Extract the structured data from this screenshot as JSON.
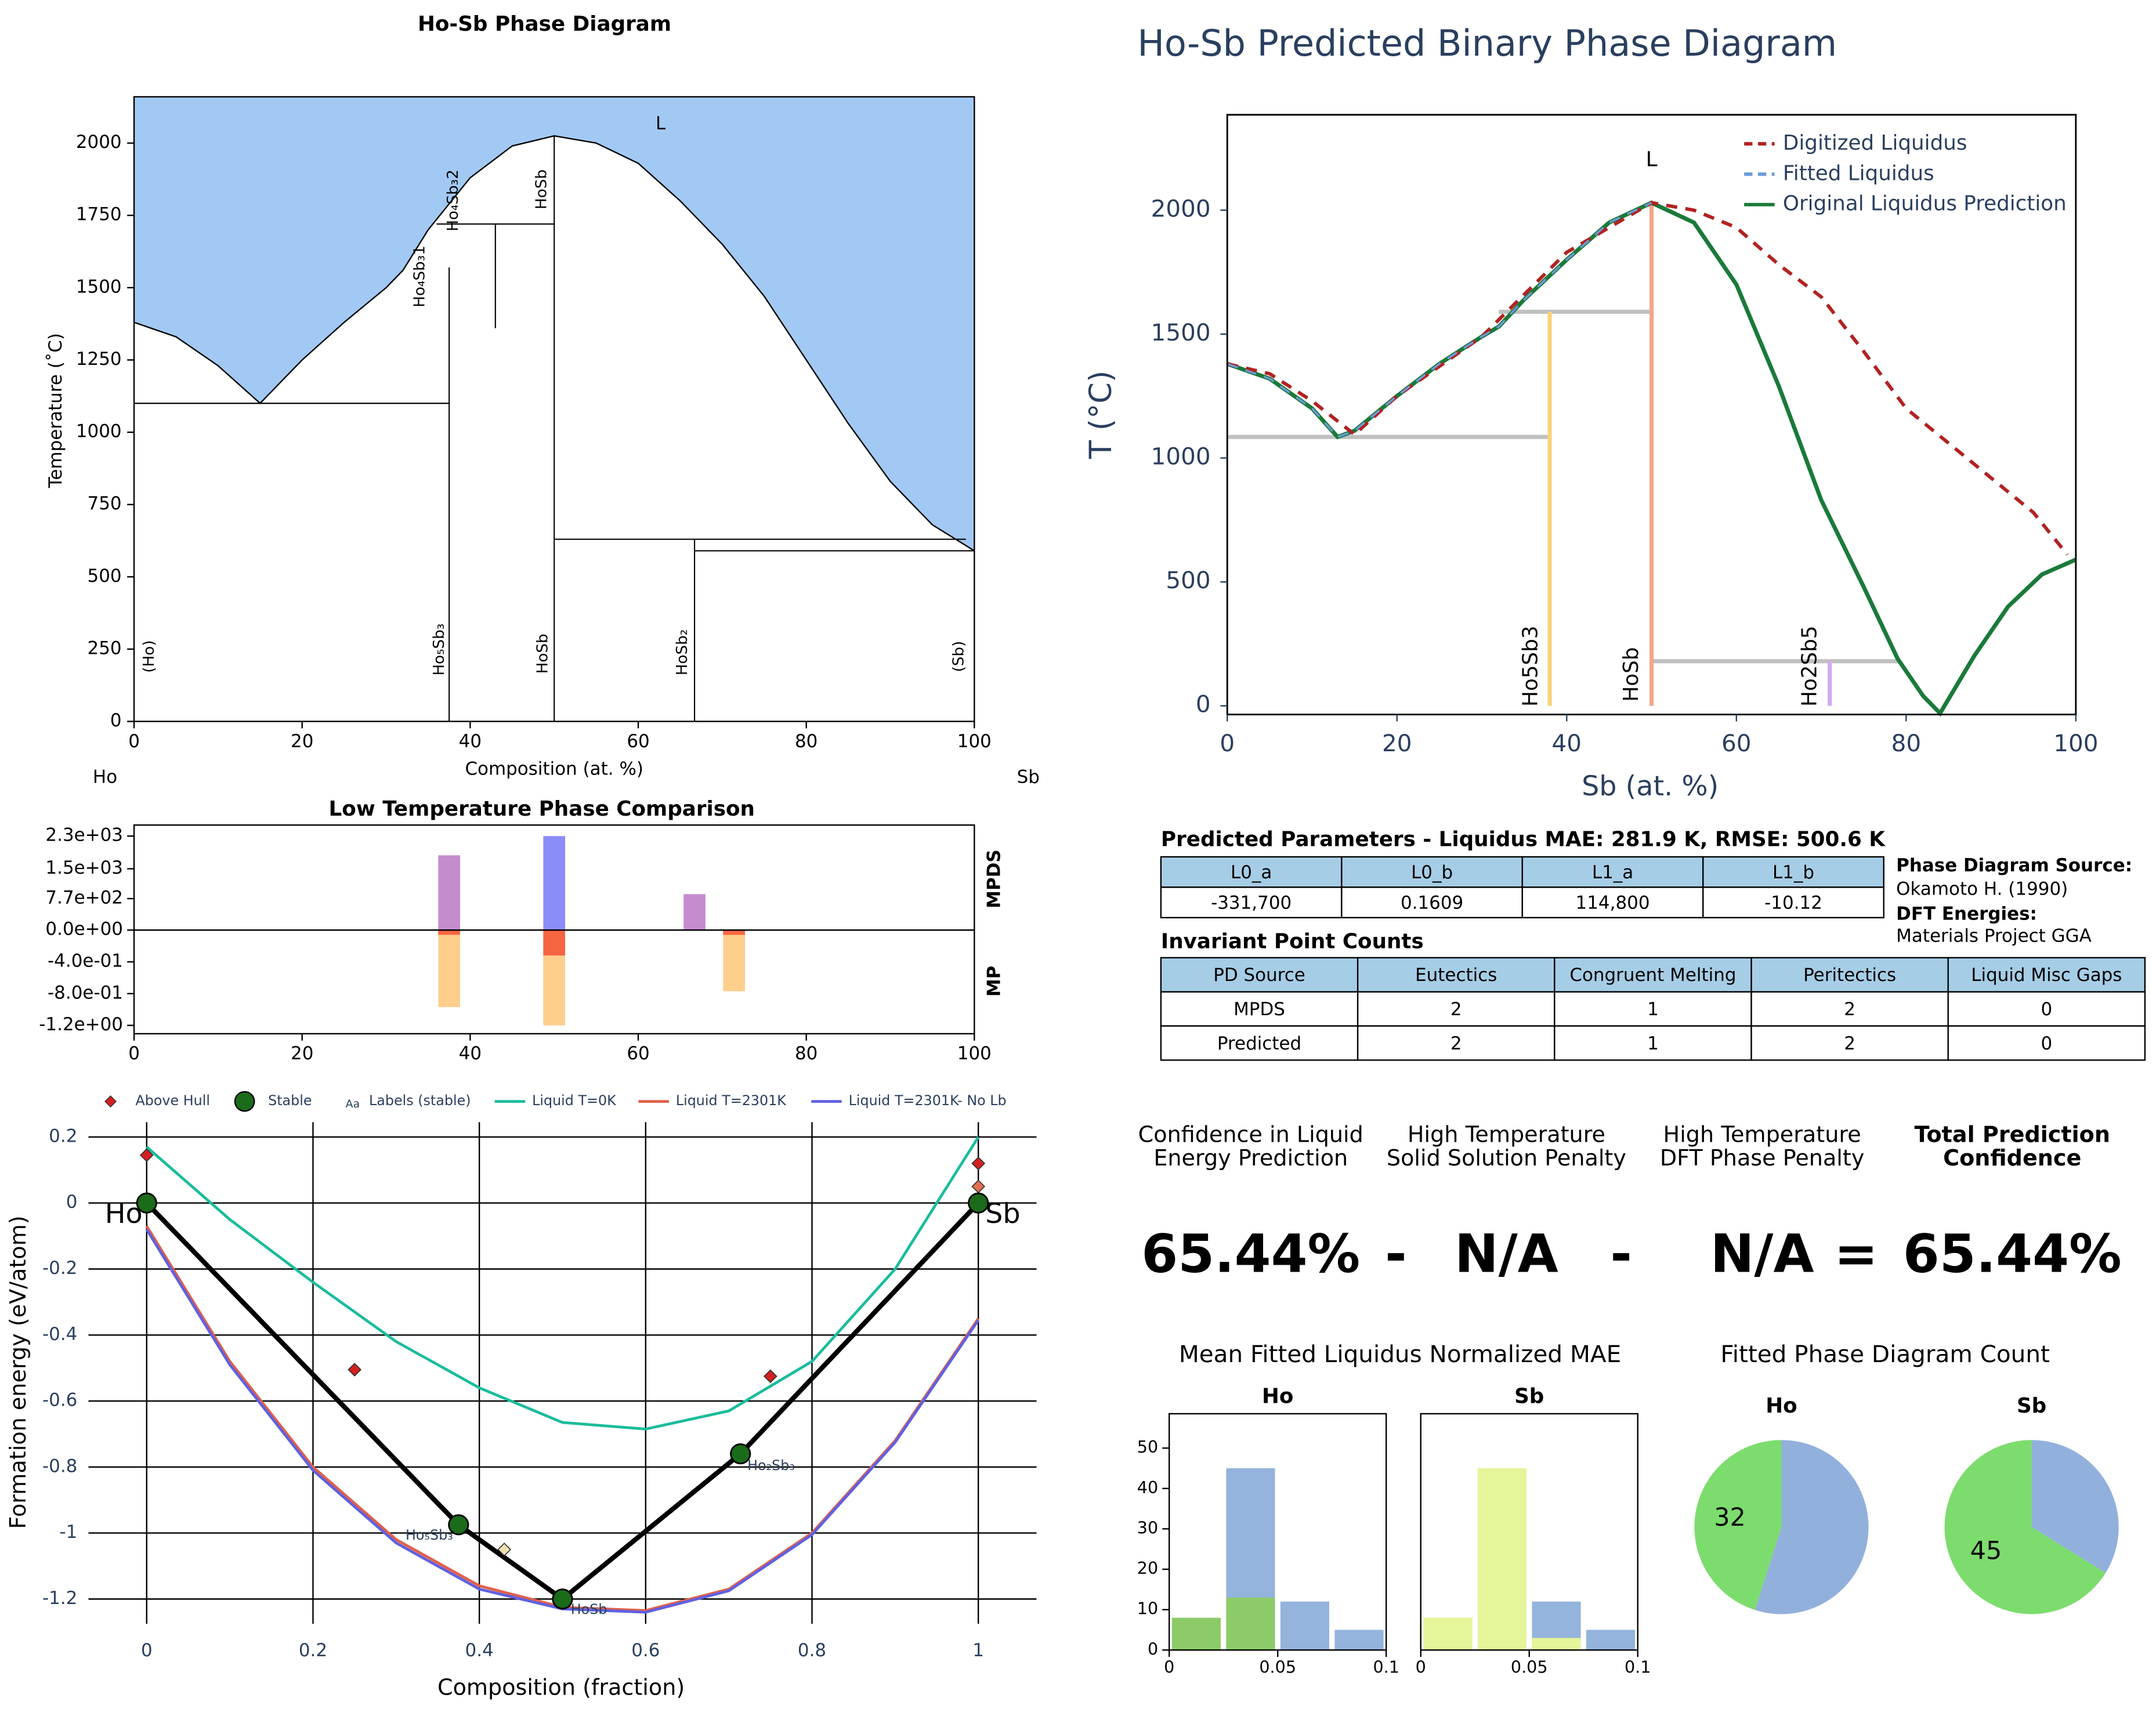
{
  "chart_data": [
    {
      "type": "line",
      "title": "Ho-Sb Phase Diagram",
      "xlabel": "Composition (at. %)",
      "ylabel": "Temperature (˚C)",
      "left_element": "Ho",
      "right_element": "Sb",
      "xlim": [
        0,
        100
      ],
      "ylim": [
        0,
        2160
      ],
      "xticks": [
        0,
        20,
        40,
        60,
        80,
        100
      ],
      "yticks": [
        0,
        250,
        500,
        750,
        1000,
        1250,
        1500,
        1750,
        2000
      ],
      "fill": "#a2c9f3",
      "series": [
        {
          "color": "#000000",
          "x": [
            0,
            5,
            10,
            15,
            20,
            25,
            30,
            32,
            35,
            40,
            45,
            50,
            55,
            60,
            65,
            66,
            70,
            75,
            80,
            85,
            90,
            95,
            100
          ],
          "values": [
            1380,
            1330,
            1230,
            1100,
            1250,
            1380,
            1500,
            1560,
            1700,
            1880,
            1990,
            2025,
            2000,
            1930,
            1800,
            1770,
            1650,
            1470,
            1250,
            1030,
            830,
            680,
            590
          ]
        }
      ],
      "boundaries": [
        {
          "x": [
            0,
            37.5
          ],
          "y": [
            1100,
            1100
          ]
        },
        {
          "x": [
            37.5,
            37.5
          ],
          "y": [
            0,
            1570
          ]
        },
        {
          "x": [
            36,
            50
          ],
          "y": [
            1720,
            1720
          ]
        },
        {
          "x": [
            43,
            43
          ],
          "y": [
            1360,
            1720
          ]
        },
        {
          "x": [
            50,
            50
          ],
          "y": [
            0,
            2025
          ]
        },
        {
          "x": [
            50,
            99
          ],
          "y": [
            630,
            630
          ]
        },
        {
          "x": [
            66.7,
            66.7
          ],
          "y": [
            0,
            630
          ]
        },
        {
          "x": [
            66.7,
            100
          ],
          "y": [
            590,
            590
          ]
        }
      ],
      "phase_labels": [
        "L",
        "(Ho)",
        "Ho₅Sb₃",
        "HoSb",
        "HoSb₂",
        "(Sb)",
        "Ho₄Sb₃1",
        "Ho₄Sb₃2",
        "HoSb"
      ]
    },
    {
      "type": "bar",
      "title": "Low Temperature Phase Comparison",
      "xlim": [
        0,
        100
      ],
      "xticks": [
        0,
        20,
        40,
        60,
        80,
        100
      ],
      "ylim": [
        0,
        2570
      ],
      "yticks": [
        {
          "value": 2300,
          "label": "2.3e+03"
        },
        {
          "value": 1500,
          "label": "1.5e+03"
        },
        {
          "value": 770,
          "label": "7.7e+02"
        },
        {
          "value": 0,
          "label": "0.0e+00"
        }
      ],
      "y2lim": [
        -1.305,
        0
      ],
      "y2ticks": [
        {
          "value": -0.4,
          "label": "-4.0e-01"
        },
        {
          "value": -0.8,
          "label": "-8.0e-01"
        },
        {
          "value": -1.2,
          "label": "-1.2e+00"
        }
      ],
      "series": [
        {
          "name": "MPDS",
          "x": [
            37.5,
            50,
            66.7
          ],
          "values": [
            1830,
            2300,
            880
          ],
          "colors": [
            "#bf80c8",
            "#7f7ff8",
            "#bf80c8"
          ]
        },
        {
          "name": "MP",
          "axis": "y2",
          "x": [
            37.5,
            50,
            71.4
          ],
          "values": [
            -0.97,
            -1.2,
            -0.77
          ],
          "color": "#fdc97f"
        },
        {
          "axis": "y2",
          "x": [
            37.5,
            50,
            71.4
          ],
          "values": [
            -0.06,
            -0.32,
            -0.06
          ],
          "color": "#f55a3a"
        }
      ]
    },
    {
      "type": "scatter",
      "xlabel": "Composition (fraction)",
      "ylabel": "Formation energy (eV/atom)",
      "xlim": [
        -0.07,
        1.07
      ],
      "ylim": [
        -1.275,
        0.245
      ],
      "xticks": [
        0,
        0.2,
        0.4,
        0.6,
        0.8,
        1
      ],
      "yticks": [
        0.2,
        0,
        -0.2,
        -0.4,
        -0.6,
        -0.8,
        -1,
        -1.2
      ],
      "grid": true,
      "labels_legend": "Labels (stable)",
      "labels_icon": "Aa",
      "series": [
        {
          "name": "Above Hull",
          "marker": "diamond",
          "x": [
            0,
            0,
            0.25,
            0.43,
            0.75,
            1,
            1
          ],
          "values": [
            0.145,
            0.01,
            -0.505,
            -1.05,
            -0.525,
            0.12,
            0.05
          ],
          "colors": [
            "#d42020",
            "#f0e0b0",
            "#d42020",
            "#f0e0b0",
            "#d42020",
            "#d42020",
            "#e07050"
          ]
        },
        {
          "name": "Stable",
          "marker": "circle",
          "color": "#1a6b1a",
          "x": [
            0,
            0.375,
            0.5,
            0.714,
            1
          ],
          "values": [
            0,
            -0.975,
            -1.2,
            -0.76,
            0
          ],
          "labels": [
            "Ho",
            "Ho₅Sb₃",
            "HoSb",
            "Ho₂Sb₃",
            "Sb"
          ]
        },
        {
          "name": "Liquid T=0K",
          "color": "#1abc9c",
          "x": [
            0,
            0.1,
            0.2,
            0.3,
            0.4,
            0.5,
            0.6,
            0.7,
            0.8,
            0.9,
            1
          ],
          "values": [
            0.17,
            -0.05,
            -0.24,
            -0.42,
            -0.56,
            -0.665,
            -0.685,
            -0.63,
            -0.48,
            -0.2,
            0.2
          ]
        },
        {
          "name": "Liquid T=2301K",
          "color": "#e0604a",
          "x": [
            0,
            0.1,
            0.2,
            0.3,
            0.4,
            0.5,
            0.6,
            0.7,
            0.8,
            0.9,
            1
          ],
          "values": [
            -0.07,
            -0.48,
            -0.8,
            -1.02,
            -1.16,
            -1.225,
            -1.235,
            -1.17,
            -1.0,
            -0.72,
            -0.35
          ]
        },
        {
          "name": "Liquid T=2301K- No Lb",
          "color": "#6060e0",
          "x": [
            0,
            0.1,
            0.2,
            0.3,
            0.4,
            0.5,
            0.6,
            0.7,
            0.8,
            0.9,
            1
          ],
          "values": [
            -0.08,
            -0.49,
            -0.81,
            -1.03,
            -1.17,
            -1.23,
            -1.24,
            -1.175,
            -1.005,
            -0.725,
            -0.355
          ]
        }
      ]
    },
    {
      "type": "line",
      "title": "Ho-Sb Predicted Binary Phase Diagram",
      "xlabel": "Sb (at. %)",
      "ylabel": "T (°C)",
      "xlim": [
        0,
        100
      ],
      "ylim": [
        -35,
        2385
      ],
      "xticks": [
        0,
        20,
        40,
        60,
        80,
        100
      ],
      "yticks": [
        0,
        500,
        1000,
        1500,
        2000
      ],
      "legend": "upper right",
      "series": [
        {
          "name": "Digitized Liquidus",
          "color": "#b22222",
          "dash": true,
          "x": [
            0,
            5,
            10,
            15,
            20,
            30,
            40,
            50,
            55,
            60,
            65,
            70,
            75,
            80,
            85,
            90,
            95,
            99
          ],
          "values": [
            1380,
            1340,
            1230,
            1095,
            1250,
            1490,
            1830,
            2030,
            2000,
            1930,
            1780,
            1650,
            1430,
            1200,
            1060,
            920,
            780,
            610
          ]
        },
        {
          "name": "Fitted Liquidus",
          "color": "#6c9ad8",
          "dash": true,
          "x": [
            0,
            5,
            10,
            13,
            15,
            20,
            25,
            30,
            32,
            35,
            40,
            45,
            50
          ],
          "values": [
            1380,
            1320,
            1200,
            1085,
            1110,
            1250,
            1380,
            1490,
            1530,
            1640,
            1800,
            1950,
            2030
          ]
        },
        {
          "name": "Original Liquidus Prediction",
          "color": "#1a7a3a",
          "x": [
            0,
            5,
            10,
            13,
            15,
            20,
            25,
            30,
            32,
            35,
            40,
            45,
            50,
            55,
            60,
            65,
            70,
            75,
            79,
            82,
            84,
            88,
            92,
            96,
            100
          ],
          "values": [
            1380,
            1320,
            1200,
            1085,
            1110,
            1250,
            1380,
            1490,
            1530,
            1640,
            1800,
            1950,
            2030,
            1950,
            1700,
            1290,
            830,
            480,
            190,
            40,
            -30,
            200,
            400,
            530,
            590
          ]
        }
      ],
      "boundaries": [
        {
          "x": [
            0,
            38
          ],
          "y": [
            1085,
            1085
          ],
          "color": "#c0c0c0"
        },
        {
          "x": [
            32,
            50
          ],
          "y": [
            1590,
            1590
          ],
          "color": "#c0c0c0"
        },
        {
          "x": [
            50,
            79
          ],
          "y": [
            180,
            180
          ],
          "color": "#c0c0c0"
        },
        {
          "x": [
            38,
            38
          ],
          "y": [
            0,
            1590
          ],
          "color": "#f5d47a"
        },
        {
          "x": [
            50,
            50
          ],
          "y": [
            0,
            2030
          ],
          "color": "#f5a58a"
        },
        {
          "x": [
            71,
            71
          ],
          "y": [
            0,
            180
          ],
          "color": "#d5a8f0"
        }
      ],
      "phase_labels": [
        "L",
        "Ho5Sb3",
        "HoSb",
        "Ho2Sb5"
      ]
    },
    {
      "type": "histogram",
      "title": "Ho",
      "xlim": [
        0,
        0.1
      ],
      "ylim": [
        0,
        58.5
      ],
      "xticks": [
        0,
        0.05,
        0.1
      ],
      "yticks": [
        0,
        10,
        20,
        30,
        40,
        50
      ],
      "bins": [
        0,
        0.025,
        0.05,
        0.075,
        0.1
      ],
      "series": [
        {
          "color": "#94b3dd",
          "values": [
            0,
            45,
            12,
            5
          ]
        },
        {
          "color": "#8dcb69",
          "values": [
            8,
            13,
            0,
            0
          ]
        }
      ]
    },
    {
      "type": "histogram",
      "title": "Sb",
      "xlim": [
        0,
        0.1
      ],
      "ylim": [
        0,
        58.5
      ],
      "xticks": [
        0,
        0.05,
        0.1
      ],
      "bins": [
        0,
        0.025,
        0.05,
        0.075,
        0.1
      ],
      "series": [
        {
          "color": "#94b3dd",
          "values": [
            0,
            0,
            12,
            5
          ]
        },
        {
          "color": "#e5f59a",
          "values": [
            8,
            45,
            3,
            0
          ]
        }
      ]
    },
    {
      "type": "pie",
      "title": "Ho",
      "values": [
        39,
        32
      ],
      "colors": [
        "#92b0dc",
        "#7ddc6e"
      ]
    },
    {
      "type": "pie",
      "title": "Sb",
      "values": [
        23,
        45
      ],
      "colors": [
        "#92b0dc",
        "#7ddc6e"
      ]
    }
  ],
  "parameters": {
    "title": "Predicted Parameters - Liquidus MAE: 281.9 K, RMSE: 500.6 K",
    "headers": [
      "L0_a",
      "L0_b",
      "L1_a",
      "L1_b"
    ],
    "row": [
      "-331,700",
      "0.1609",
      "114,800",
      "-10.12"
    ]
  },
  "source": {
    "pd_label": "Phase Diagram Source:",
    "pd_value": "Okamoto H. (1990)",
    "dft_label": "DFT Energies:",
    "dft_value": "Materials Project GGA"
  },
  "invariants": {
    "title": "Invariant Point Counts",
    "headers": [
      "PD Source",
      "Eutectics",
      "Congruent Melting",
      "Peritectics",
      "Liquid Misc Gaps"
    ],
    "rows": [
      [
        "MPDS",
        "2",
        "1",
        "2",
        "0"
      ],
      [
        "Predicted",
        "2",
        "1",
        "2",
        "0"
      ]
    ]
  },
  "confidence": {
    "labels": [
      [
        "Confidence in Liquid",
        "Energy Prediction"
      ],
      [
        "High Temperature",
        "Solid Solution Penalty"
      ],
      [
        "High Temperature",
        "DFT Phase Penalty"
      ],
      [
        "Total Prediction",
        "Confidence"
      ]
    ],
    "values": [
      "65.44%",
      "N/A",
      "N/A",
      "65.44%"
    ],
    "operators": [
      "-",
      "-",
      "="
    ]
  },
  "hist_title": "Mean Fitted Liquidus Normalized MAE",
  "pie_title": "Fitted Phase Diagram Count"
}
